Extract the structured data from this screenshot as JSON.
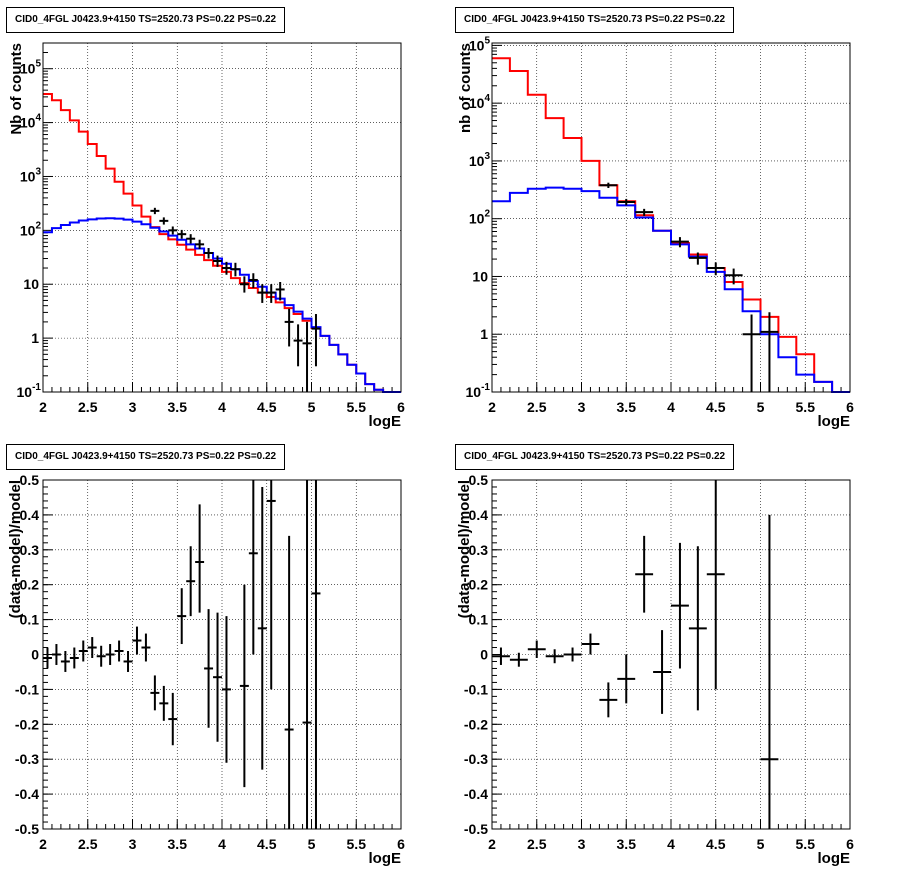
{
  "chart_data": [
    {
      "id": "p1",
      "type": "line",
      "title": "CID0_4FGL J0423.9+4150 TS=2520.73 PS=0.22 PS=0.22",
      "xlabel": "logE",
      "ylabel": "Nb of counts",
      "yscale": "log",
      "xlim": [
        2,
        6
      ],
      "ylim": [
        0.1,
        300000
      ],
      "xticks": [
        2,
        2.5,
        3,
        3.5,
        4,
        4.5,
        5,
        5.5,
        6
      ],
      "xticklabels": [
        "2",
        "2.5",
        "3",
        "3.5",
        "4",
        "4.5",
        "5",
        "5.5",
        "6"
      ],
      "yticks": [
        0.1,
        1,
        10,
        100,
        1000,
        10000,
        100000
      ],
      "yticklabels": [
        "10^-1",
        "1",
        "10",
        "10^2",
        "10^3",
        "10^4",
        "10^5"
      ],
      "grid": true,
      "colors": {
        "total": "#ff0000",
        "source": "#0000ff",
        "data": "#000000"
      },
      "binwidth": 0.1,
      "series": [
        {
          "kind": "hist",
          "color": "#ff0000",
          "edges": [
            2.0,
            2.1,
            2.2,
            2.3,
            2.4,
            2.5,
            2.6,
            2.7,
            2.8,
            2.9,
            3.0,
            3.1,
            3.2,
            3.3,
            3.4,
            3.5,
            3.6,
            3.7,
            3.8,
            3.9,
            4.0,
            4.1,
            4.2,
            4.3,
            4.4,
            4.5,
            4.6,
            4.7,
            4.8,
            4.9,
            5.0,
            5.1,
            5.2,
            5.3,
            5.4,
            5.5,
            5.6,
            5.7,
            5.8,
            5.9,
            6.0
          ],
          "values": [
            34000,
            26000,
            17000,
            11000,
            6800,
            4000,
            2400,
            1400,
            800,
            480,
            290,
            180,
            115,
            85,
            68,
            54,
            44,
            35,
            28,
            22,
            17,
            13,
            10.5,
            8.5,
            7,
            5.8,
            4.6,
            3.6,
            2.8,
            2.1,
            1.55,
            1.1,
            0.75,
            0.5,
            0.32,
            0.22,
            0.14,
            0.11,
            0.1,
            0.1
          ]
        },
        {
          "kind": "hist",
          "color": "#0000ff",
          "edges": [
            2.0,
            2.1,
            2.2,
            2.3,
            2.4,
            2.5,
            2.6,
            2.7,
            2.8,
            2.9,
            3.0,
            3.1,
            3.2,
            3.3,
            3.4,
            3.5,
            3.6,
            3.7,
            3.8,
            3.9,
            4.0,
            4.1,
            4.2,
            4.3,
            4.4,
            4.5,
            4.6,
            4.7,
            4.8,
            4.9,
            5.0,
            5.1,
            5.2,
            5.3,
            5.4,
            5.5,
            5.6,
            5.7,
            5.8,
            5.9,
            6.0
          ],
          "values": [
            92,
            110,
            126,
            140,
            152,
            160,
            166,
            168,
            165,
            158,
            145,
            130,
            112,
            95,
            80,
            67,
            55,
            46,
            38,
            30,
            24,
            19,
            15,
            11.5,
            9,
            7,
            5.4,
            4.1,
            3.1,
            2.3,
            1.6,
            1.1,
            0.75,
            0.5,
            0.32,
            0.22,
            0.14,
            0.11,
            0.1,
            0.1
          ]
        },
        {
          "kind": "points",
          "color": "#000000",
          "x": [
            3.25,
            3.35,
            3.45,
            3.55,
            3.65,
            3.75,
            3.85,
            3.95,
            4.05,
            4.15,
            4.25,
            4.35,
            4.45,
            4.55,
            4.65,
            4.75,
            4.85,
            4.95,
            5.05
          ],
          "y": [
            230,
            150,
            100,
            85,
            70,
            55,
            38,
            27,
            20,
            19,
            10,
            12,
            7,
            7,
            8,
            2,
            0.9,
            0.8,
            1.5
          ],
          "ylo": [
            200,
            128,
            84,
            70,
            57,
            45,
            30,
            21,
            15,
            14,
            7,
            8.5,
            4.5,
            4.5,
            5,
            0.7,
            0.3,
            0.1,
            0.3
          ],
          "yhi": [
            262,
            174,
            118,
            102,
            85,
            67,
            47,
            34,
            26,
            25,
            14,
            16,
            10,
            10,
            11,
            3.5,
            1.8,
            2.0,
            2.8
          ],
          "xerr": 0.05
        }
      ]
    },
    {
      "id": "p2",
      "type": "line",
      "title": "CID0_4FGL J0423.9+4150 TS=2520.73 PS=0.22 PS=0.22",
      "xlabel": "logE",
      "ylabel": "nb of counts",
      "yscale": "log",
      "xlim": [
        2,
        6
      ],
      "ylim": [
        0.1,
        110000
      ],
      "xticks": [
        2,
        2.5,
        3,
        3.5,
        4,
        4.5,
        5,
        5.5,
        6
      ],
      "xticklabels": [
        "2",
        "2.5",
        "3",
        "3.5",
        "4",
        "4.5",
        "5",
        "5.5",
        "6"
      ],
      "yticks": [
        0.1,
        1,
        10,
        100,
        1000,
        10000,
        100000
      ],
      "yticklabels": [
        "10^-1",
        "1",
        "10",
        "10^2",
        "10^3",
        "10^4",
        "10^5"
      ],
      "grid": true,
      "colors": {
        "total": "#ff0000",
        "source": "#0000ff",
        "data": "#000000"
      },
      "binwidth": 0.2,
      "series": [
        {
          "kind": "hist",
          "color": "#ff0000",
          "edges": [
            2.0,
            2.2,
            2.4,
            2.6,
            2.8,
            3.0,
            3.2,
            3.4,
            3.6,
            3.8,
            4.0,
            4.2,
            4.4,
            4.6,
            4.8,
            5.0,
            5.2,
            5.4,
            5.6,
            5.8,
            6.0
          ],
          "values": [
            60000,
            36000,
            14000,
            5500,
            2500,
            1000,
            380,
            200,
            115,
            62,
            38,
            24,
            14,
            8,
            4,
            2,
            0.9,
            0.45,
            0.15,
            0.1
          ]
        },
        {
          "kind": "hist",
          "color": "#0000ff",
          "edges": [
            2.0,
            2.2,
            2.4,
            2.6,
            2.8,
            3.0,
            3.2,
            3.4,
            3.6,
            3.8,
            4.0,
            4.2,
            4.4,
            4.6,
            4.8,
            5.0,
            5.2,
            5.4,
            5.6,
            5.8,
            6.0
          ],
          "values": [
            200,
            280,
            330,
            345,
            330,
            300,
            230,
            170,
            105,
            62,
            36,
            22,
            12,
            6,
            2.5,
            1,
            0.4,
            0.2,
            0.15,
            0.1
          ]
        },
        {
          "kind": "points",
          "color": "#000000",
          "x": [
            3.3,
            3.5,
            3.7,
            4.1,
            4.3,
            4.5,
            4.7,
            4.9,
            5.1
          ],
          "y": [
            380,
            195,
            130,
            40,
            21,
            14,
            10.5,
            1.0,
            1.1
          ],
          "ylo": [
            340,
            170,
            112,
            32,
            16,
            10.5,
            7.3,
            0.1,
            0.1
          ],
          "yhi": [
            420,
            220,
            148,
            48,
            26,
            17.5,
            13.7,
            2.2,
            2.4
          ],
          "xerr": 0.1
        }
      ]
    },
    {
      "id": "p3",
      "type": "scatter",
      "title": "CID0_4FGL J0423.9+4150 TS=2520.73 PS=0.22 PS=0.22",
      "xlabel": "logE",
      "ylabel": "(data-model)/model",
      "yscale": "linear",
      "xlim": [
        2,
        6
      ],
      "ylim": [
        -0.5,
        0.5
      ],
      "xticks": [
        2,
        2.5,
        3,
        3.5,
        4,
        4.5,
        5,
        5.5,
        6
      ],
      "xticklabels": [
        "2",
        "2.5",
        "3",
        "3.5",
        "4",
        "4.5",
        "5",
        "5.5",
        "6"
      ],
      "yticks": [
        -0.5,
        -0.4,
        -0.3,
        -0.2,
        -0.1,
        0,
        0.1,
        0.2,
        0.3,
        0.4,
        0.5
      ],
      "yticklabels": [
        "-0.5",
        "-0.4",
        "-0.3",
        "-0.2",
        "-0.1",
        "0",
        "0.1",
        "0.2",
        "0.3",
        "0.4",
        "0.5"
      ],
      "grid": true,
      "series": [
        {
          "kind": "points",
          "color": "#000000",
          "x": [
            2.05,
            2.15,
            2.25,
            2.35,
            2.45,
            2.55,
            2.65,
            2.75,
            2.85,
            2.95,
            3.05,
            3.15,
            3.25,
            3.35,
            3.45,
            3.55,
            3.65,
            3.75,
            3.85,
            3.95,
            4.05,
            4.25,
            4.35,
            4.45,
            4.55,
            4.75,
            4.95,
            5.05
          ],
          "y": [
            -0.01,
            0.0,
            -0.02,
            -0.01,
            0.01,
            0.02,
            -0.005,
            0.0,
            0.01,
            -0.02,
            0.04,
            0.02,
            -0.11,
            -0.14,
            -0.185,
            0.11,
            0.21,
            0.265,
            -0.04,
            -0.065,
            -0.1,
            -0.09,
            0.29,
            0.075,
            0.44,
            -0.215,
            -0.195,
            0.175
          ],
          "ylo": [
            -0.04,
            -0.03,
            -0.05,
            -0.04,
            -0.02,
            -0.01,
            -0.035,
            -0.03,
            -0.02,
            -0.05,
            0.0,
            -0.02,
            -0.16,
            -0.19,
            -0.26,
            0.03,
            0.11,
            0.12,
            -0.21,
            -0.25,
            -0.31,
            -0.38,
            0.0,
            -0.33,
            -0.1,
            -0.6,
            -0.6,
            -0.6
          ],
          "yhi": [
            0.02,
            0.03,
            0.01,
            0.02,
            0.04,
            0.05,
            0.025,
            0.03,
            0.04,
            0.01,
            0.08,
            0.06,
            -0.06,
            -0.09,
            -0.11,
            0.19,
            0.31,
            0.43,
            0.13,
            0.12,
            0.11,
            0.2,
            0.6,
            0.48,
            0.98,
            0.34,
            0.6,
            0.6
          ],
          "xerr": 0.05
        }
      ]
    },
    {
      "id": "p4",
      "type": "scatter",
      "title": "CID0_4FGL J0423.9+4150 TS=2520.73 PS=0.22 PS=0.22",
      "xlabel": "logE",
      "ylabel": "(data-model)/model",
      "yscale": "linear",
      "xlim": [
        2,
        6
      ],
      "ylim": [
        -0.5,
        0.5
      ],
      "xticks": [
        2,
        2.5,
        3,
        3.5,
        4,
        4.5,
        5,
        5.5,
        6
      ],
      "xticklabels": [
        "2",
        "2.5",
        "3",
        "3.5",
        "4",
        "4.5",
        "5",
        "5.5",
        "6"
      ],
      "yticks": [
        -0.5,
        -0.4,
        -0.3,
        -0.2,
        -0.1,
        0,
        0.1,
        0.2,
        0.3,
        0.4,
        0.5
      ],
      "yticklabels": [
        "-0.5",
        "-0.4",
        "-0.3",
        "-0.2",
        "-0.1",
        "0",
        "0.1",
        "0.2",
        "0.3",
        "0.4",
        "0.5"
      ],
      "grid": true,
      "series": [
        {
          "kind": "points",
          "color": "#000000",
          "x": [
            2.1,
            2.3,
            2.5,
            2.7,
            2.9,
            3.1,
            3.3,
            3.5,
            3.7,
            3.9,
            4.1,
            4.3,
            4.5,
            5.1
          ],
          "y": [
            -0.005,
            -0.015,
            0.015,
            -0.005,
            0.0,
            0.03,
            -0.13,
            -0.07,
            0.23,
            -0.05,
            0.14,
            0.075,
            0.23,
            -0.3
          ],
          "ylo": [
            -0.03,
            -0.035,
            -0.01,
            -0.025,
            -0.02,
            0.0,
            -0.18,
            -0.14,
            0.12,
            -0.17,
            -0.04,
            -0.16,
            -0.1,
            -0.6
          ],
          "yhi": [
            0.02,
            0.005,
            0.04,
            0.015,
            0.02,
            0.06,
            -0.08,
            0.0,
            0.34,
            0.07,
            0.32,
            0.31,
            0.56,
            0.4
          ],
          "xerr": 0.1
        }
      ]
    }
  ]
}
